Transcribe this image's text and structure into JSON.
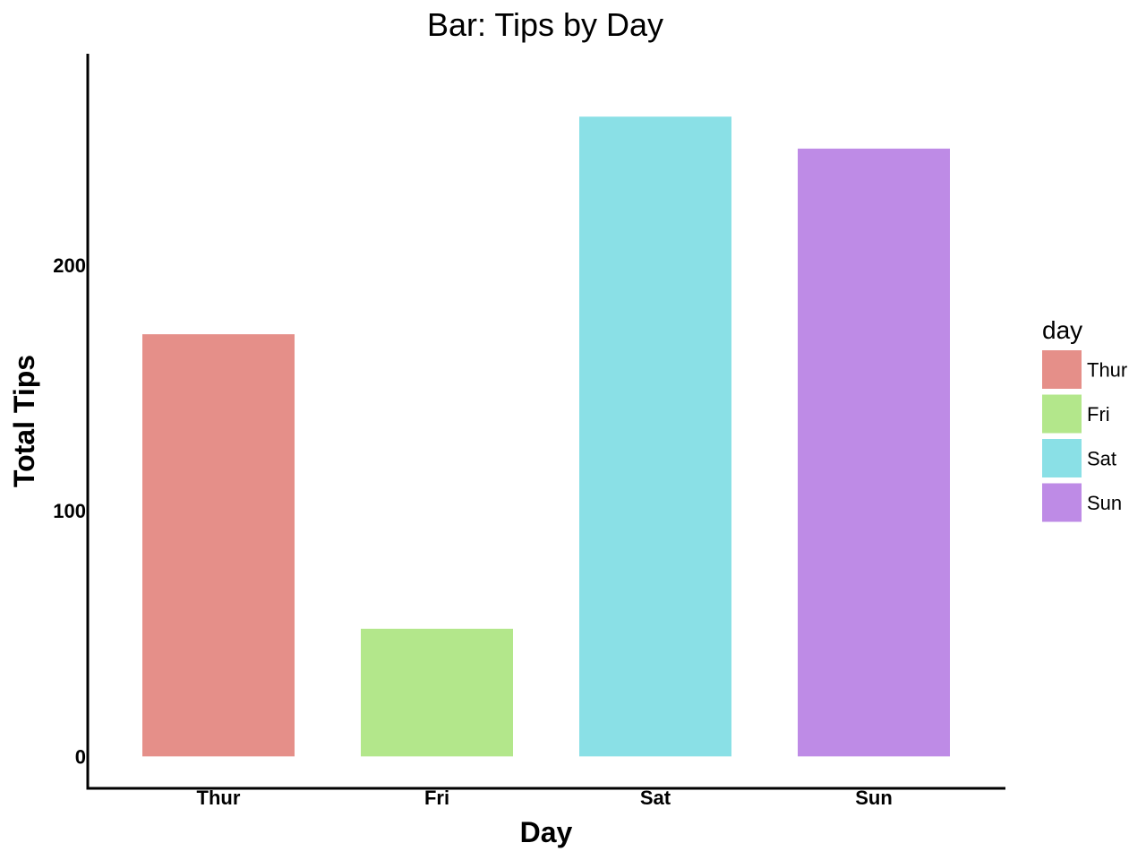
{
  "chart_data": {
    "type": "bar",
    "title": "Bar: Tips by Day",
    "xlabel": "Day",
    "ylabel": "Total Tips",
    "categories": [
      "Thur",
      "Fri",
      "Sat",
      "Sun"
    ],
    "values": [
      171.83,
      51.96,
      260.4,
      247.39
    ],
    "colors": [
      "#e58f89",
      "#b3e78b",
      "#8ae0e6",
      "#be8be6"
    ],
    "yticks": [
      0,
      100,
      200
    ],
    "ylim": [
      -13,
      286
    ],
    "grid": false,
    "legend": {
      "title": "day",
      "position": "right",
      "entries": [
        "Thur",
        "Fri",
        "Sat",
        "Sun"
      ]
    }
  }
}
